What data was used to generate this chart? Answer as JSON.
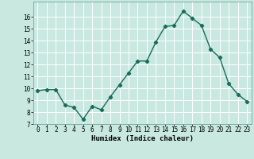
{
  "x": [
    0,
    1,
    2,
    3,
    4,
    5,
    6,
    7,
    8,
    9,
    10,
    11,
    12,
    13,
    14,
    15,
    16,
    17,
    18,
    19,
    20,
    21,
    22,
    23
  ],
  "y": [
    9.8,
    9.9,
    9.9,
    8.6,
    8.4,
    7.4,
    8.5,
    8.2,
    9.3,
    10.3,
    11.3,
    12.3,
    12.3,
    13.9,
    15.2,
    15.3,
    16.5,
    15.9,
    15.3,
    13.3,
    12.6,
    10.4,
    9.5,
    8.9
  ],
  "line_color": "#1a6b5a",
  "marker": "D",
  "marker_size": 2.2,
  "bg_color": "#c8e8e0",
  "grid_color": "#ffffff",
  "xlabel": "Humidex (Indice chaleur)",
  "ylim": [
    7,
    17
  ],
  "xlim_min": -0.5,
  "xlim_max": 23.5,
  "yticks": [
    7,
    8,
    9,
    10,
    11,
    12,
    13,
    14,
    15,
    16
  ],
  "xticks": [
    0,
    1,
    2,
    3,
    4,
    5,
    6,
    7,
    8,
    9,
    10,
    11,
    12,
    13,
    14,
    15,
    16,
    17,
    18,
    19,
    20,
    21,
    22,
    23
  ],
  "tick_fontsize": 5.5,
  "xlabel_fontsize": 6.5,
  "linewidth": 1.0
}
